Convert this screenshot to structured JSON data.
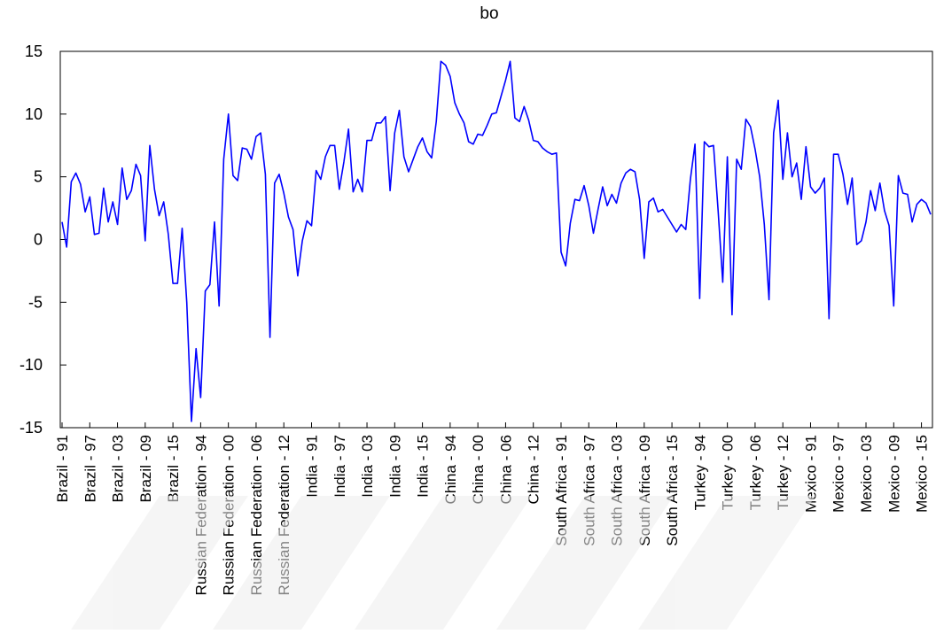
{
  "chart_data": {
    "type": "line",
    "title": "bo",
    "xlabel": "",
    "ylabel": "",
    "ylim": [
      -15,
      15
    ],
    "yticks": [
      15,
      10,
      5,
      0,
      -5,
      -10,
      -15
    ],
    "grid": false,
    "line_color": "#0000FF",
    "xtick_labels": [
      "Brazil - 91",
      "Brazil - 97",
      "Brazil - 03",
      "Brazil - 09",
      "Brazil - 15",
      "Russian Federation - 94",
      "Russian Federation - 00",
      "Russian Federation - 06",
      "Russian Federation - 12",
      "India - 91",
      "India - 97",
      "India - 03",
      "India - 09",
      "India - 15",
      "China - 94",
      "China - 00",
      "China - 06",
      "China - 12",
      "South Africa - 91",
      "South Africa - 97",
      "South Africa - 03",
      "South Africa - 09",
      "South Africa - 15",
      "Turkey - 94",
      "Turkey - 00",
      "Turkey - 06",
      "Turkey - 12",
      "Mexico - 91",
      "Mexico - 97",
      "Mexico - 03",
      "Mexico - 09",
      "Mexico - 15"
    ],
    "xtick_positions": [
      0,
      6,
      12,
      18,
      24,
      30,
      36,
      42,
      48,
      54,
      60,
      66,
      72,
      78,
      84,
      90,
      96,
      102,
      108,
      114,
      120,
      126,
      132,
      138,
      144,
      150,
      156,
      162,
      168,
      174,
      180,
      186
    ],
    "series": [
      {
        "values": [
          1.4,
          -0.6,
          4.6,
          5.3,
          4.4,
          2.2,
          3.4,
          0.4,
          0.5,
          4.1,
          1.4,
          3.0,
          1.2,
          5.7,
          3.2,
          3.9,
          6.0,
          5.1,
          -0.1,
          7.5,
          4.0,
          1.9,
          3.0,
          0.4,
          -3.5,
          -3.5,
          0.9,
          -5.0,
          -14.5,
          -8.7,
          -12.6,
          -4.1,
          -3.6,
          1.4,
          -5.3,
          6.4,
          10.0,
          5.1,
          4.7,
          7.3,
          7.2,
          6.4,
          8.2,
          8.5,
          5.2,
          -7.8,
          4.5,
          5.2,
          3.7,
          1.8,
          0.8,
          -2.9,
          -0.1,
          1.5,
          1.1,
          5.5,
          4.8,
          6.6,
          7.5,
          7.5,
          4.0,
          6.2,
          8.8,
          3.8,
          4.8,
          3.8,
          7.9,
          7.9,
          9.3,
          9.3,
          9.8,
          3.9,
          8.5,
          10.3,
          6.6,
          5.4,
          6.4,
          7.4,
          8.1,
          7.0,
          6.5,
          9.4,
          14.2,
          13.9,
          13.0,
          10.9,
          10.0,
          9.3,
          7.8,
          7.6,
          8.4,
          8.3,
          9.1,
          10.0,
          10.1,
          11.4,
          12.7,
          14.2,
          9.7,
          9.4,
          10.6,
          9.5,
          7.9,
          7.8,
          7.3,
          7.0,
          6.8,
          6.9,
          -1.0,
          -2.1,
          1.3,
          3.2,
          3.1,
          4.3,
          2.7,
          0.5,
          2.4,
          4.2,
          2.7,
          3.6,
          2.9,
          4.5,
          5.3,
          5.6,
          5.4,
          3.2,
          -1.5,
          3.0,
          3.3,
          2.2,
          2.4,
          1.8,
          1.2,
          0.6,
          1.2,
          0.8,
          4.8,
          7.6,
          -4.7,
          7.8,
          7.4,
          7.5,
          2.3,
          -3.4,
          6.6,
          -6.0,
          6.4,
          5.6,
          9.6,
          9.0,
          7.2,
          5.0,
          1.2,
          -4.8,
          8.5,
          11.1,
          4.8,
          8.5,
          5.0,
          6.1,
          3.2,
          7.4,
          4.2,
          3.7,
          4.1,
          4.9,
          -6.3,
          6.8,
          6.8,
          5.2,
          2.8,
          4.9,
          -0.4,
          -0.1,
          1.4,
          3.9,
          2.3,
          4.5,
          2.3,
          1.1,
          -5.3,
          5.1,
          3.7,
          3.6,
          1.4,
          2.8,
          3.2,
          2.9,
          2.0
        ]
      }
    ]
  }
}
